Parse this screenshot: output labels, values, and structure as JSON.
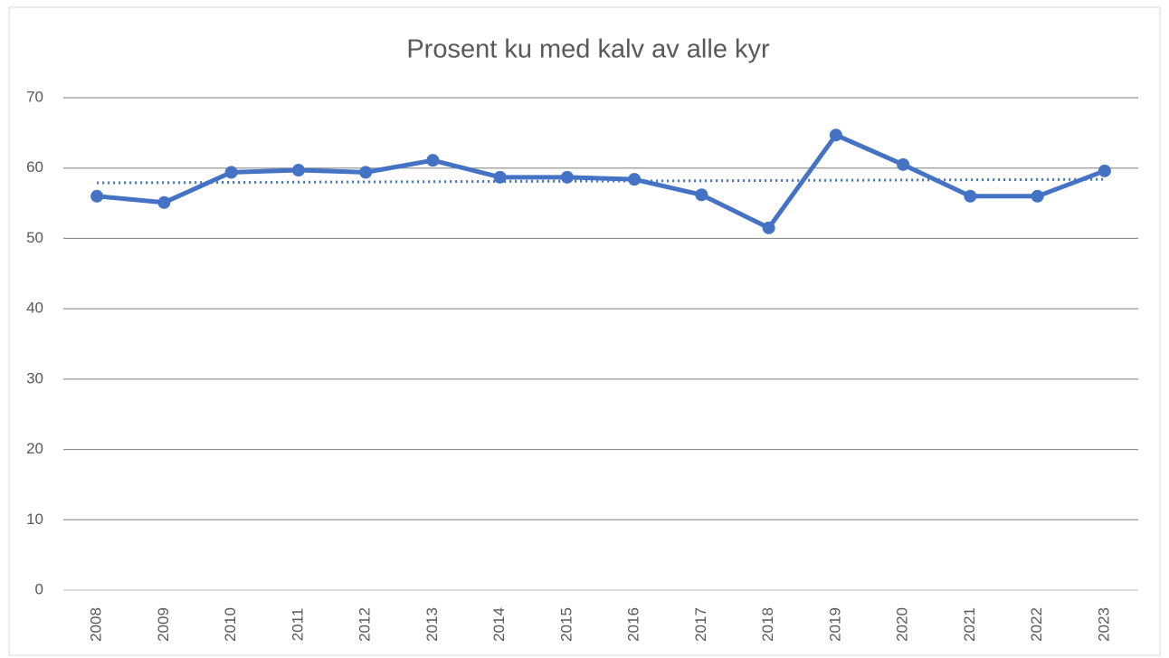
{
  "chart_data": {
    "type": "line",
    "title": "Prosent ku med kalv av alle kyr",
    "categories": [
      "2008",
      "2009",
      "2010",
      "2011",
      "2012",
      "2013",
      "2014",
      "2015",
      "2016",
      "2017",
      "2018",
      "2019",
      "2020",
      "2021",
      "2022",
      "2023"
    ],
    "values": [
      56.0,
      55.1,
      59.4,
      59.7,
      59.4,
      61.1,
      58.7,
      58.7,
      58.4,
      56.2,
      51.5,
      64.7,
      60.5,
      56.0,
      56.0,
      59.6
    ],
    "color": "#4472c4",
    "trendline": {
      "start": 57.9,
      "end": 58.4,
      "color": "#4472c4"
    },
    "ylim": [
      0,
      70
    ],
    "yticks": [
      0,
      10,
      20,
      30,
      40,
      50,
      60,
      70
    ],
    "grid": true
  }
}
